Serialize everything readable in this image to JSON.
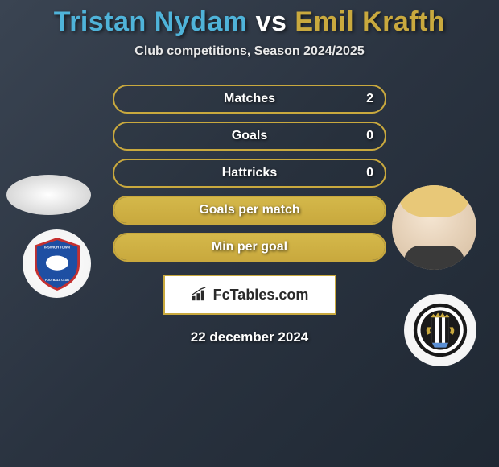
{
  "title": {
    "player1": "Tristan Nydam",
    "vs": "vs",
    "player2": "Emil Krafth",
    "color_p1": "#4fb3d9",
    "color_vs": "#ffffff",
    "color_p2": "#c9a93e"
  },
  "subtitle": "Club competitions, Season 2024/2025",
  "stats": [
    {
      "label": "Matches",
      "value_right": "2",
      "fill_pct": 0
    },
    {
      "label": "Goals",
      "value_right": "0",
      "fill_pct": 0
    },
    {
      "label": "Hattricks",
      "value_right": "0",
      "fill_pct": 0
    },
    {
      "label": "Goals per match",
      "value_right": "",
      "fill_pct": 100
    },
    {
      "label": "Min per goal",
      "value_right": "",
      "fill_pct": 100
    }
  ],
  "watermark": "FcTables.com",
  "date": "22 december 2024",
  "colors": {
    "accent": "#c9a93e",
    "bg_from": "#3a4452",
    "bg_to": "#1f2833",
    "text": "#ffffff"
  },
  "badges": {
    "left": "ipswich-town-badge",
    "right": "newcastle-united-badge"
  },
  "players": {
    "left_avatar": "tristan-nydam-avatar",
    "right_avatar": "emil-krafth-avatar"
  }
}
